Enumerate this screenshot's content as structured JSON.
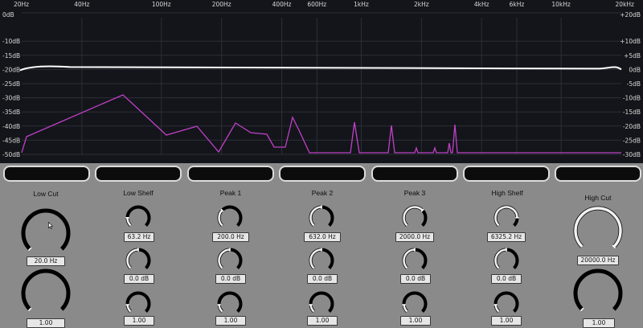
{
  "analyzer": {
    "freq_labels": [
      "20Hz",
      "40Hz",
      "100Hz",
      "200Hz",
      "400Hz",
      "600Hz",
      "1kHz",
      "2kHz",
      "4kHz",
      "6kHz",
      "10kHz",
      "20kHz"
    ],
    "left_db_labels": [
      "0dB",
      "-10dB",
      "-15dB",
      "-20dB",
      "-25dB",
      "-30dB",
      "-35dB",
      "-40dB",
      "-45dB",
      "-50dB"
    ],
    "right_db_labels": [
      "+20dB",
      "+10dB",
      "+5dB",
      "0dB",
      "-5dB",
      "-10dB",
      "-15dB",
      "-20dB",
      "-25dB",
      "-30dB"
    ],
    "colors": {
      "background": "#13151a",
      "grid": "#2c2f36",
      "response": "#ffffff",
      "spectrum": "#c040c8"
    }
  },
  "bands": [
    {
      "title": "Low Cut",
      "freq": "20.0 Hz",
      "q": "1.00",
      "freq_level": 0.0,
      "q_level": 0.0
    },
    {
      "title": "Low Shelf",
      "freq": "63.2 Hz",
      "gain": "0.0 dB",
      "q": "1.00",
      "freq_level": 0.17,
      "gain_level": 0.5,
      "q_level": 0.15
    },
    {
      "title": "Peak 1",
      "freq": "200.0 Hz",
      "gain": "0.0 dB",
      "q": "1.00",
      "freq_level": 0.33,
      "gain_level": 0.5,
      "q_level": 0.15
    },
    {
      "title": "Peak 2",
      "freq": "632.0 Hz",
      "gain": "0.0 dB",
      "q": "1.00",
      "freq_level": 0.5,
      "gain_level": 0.5,
      "q_level": 0.15
    },
    {
      "title": "Peak 3",
      "freq": "2000.0 Hz",
      "gain": "0.0 dB",
      "q": "1.00",
      "freq_level": 0.67,
      "gain_level": 0.5,
      "q_level": 0.15
    },
    {
      "title": "High Shelf",
      "freq": "6325.2 Hz",
      "gain": "0.0 dB",
      "q": "1.00",
      "freq_level": 0.83,
      "gain_level": 0.5,
      "q_level": 0.15
    },
    {
      "title": "High Cut",
      "freq": "20000.0 Hz",
      "q": "1.00",
      "freq_level": 1.0,
      "q_level": 0.0
    }
  ]
}
